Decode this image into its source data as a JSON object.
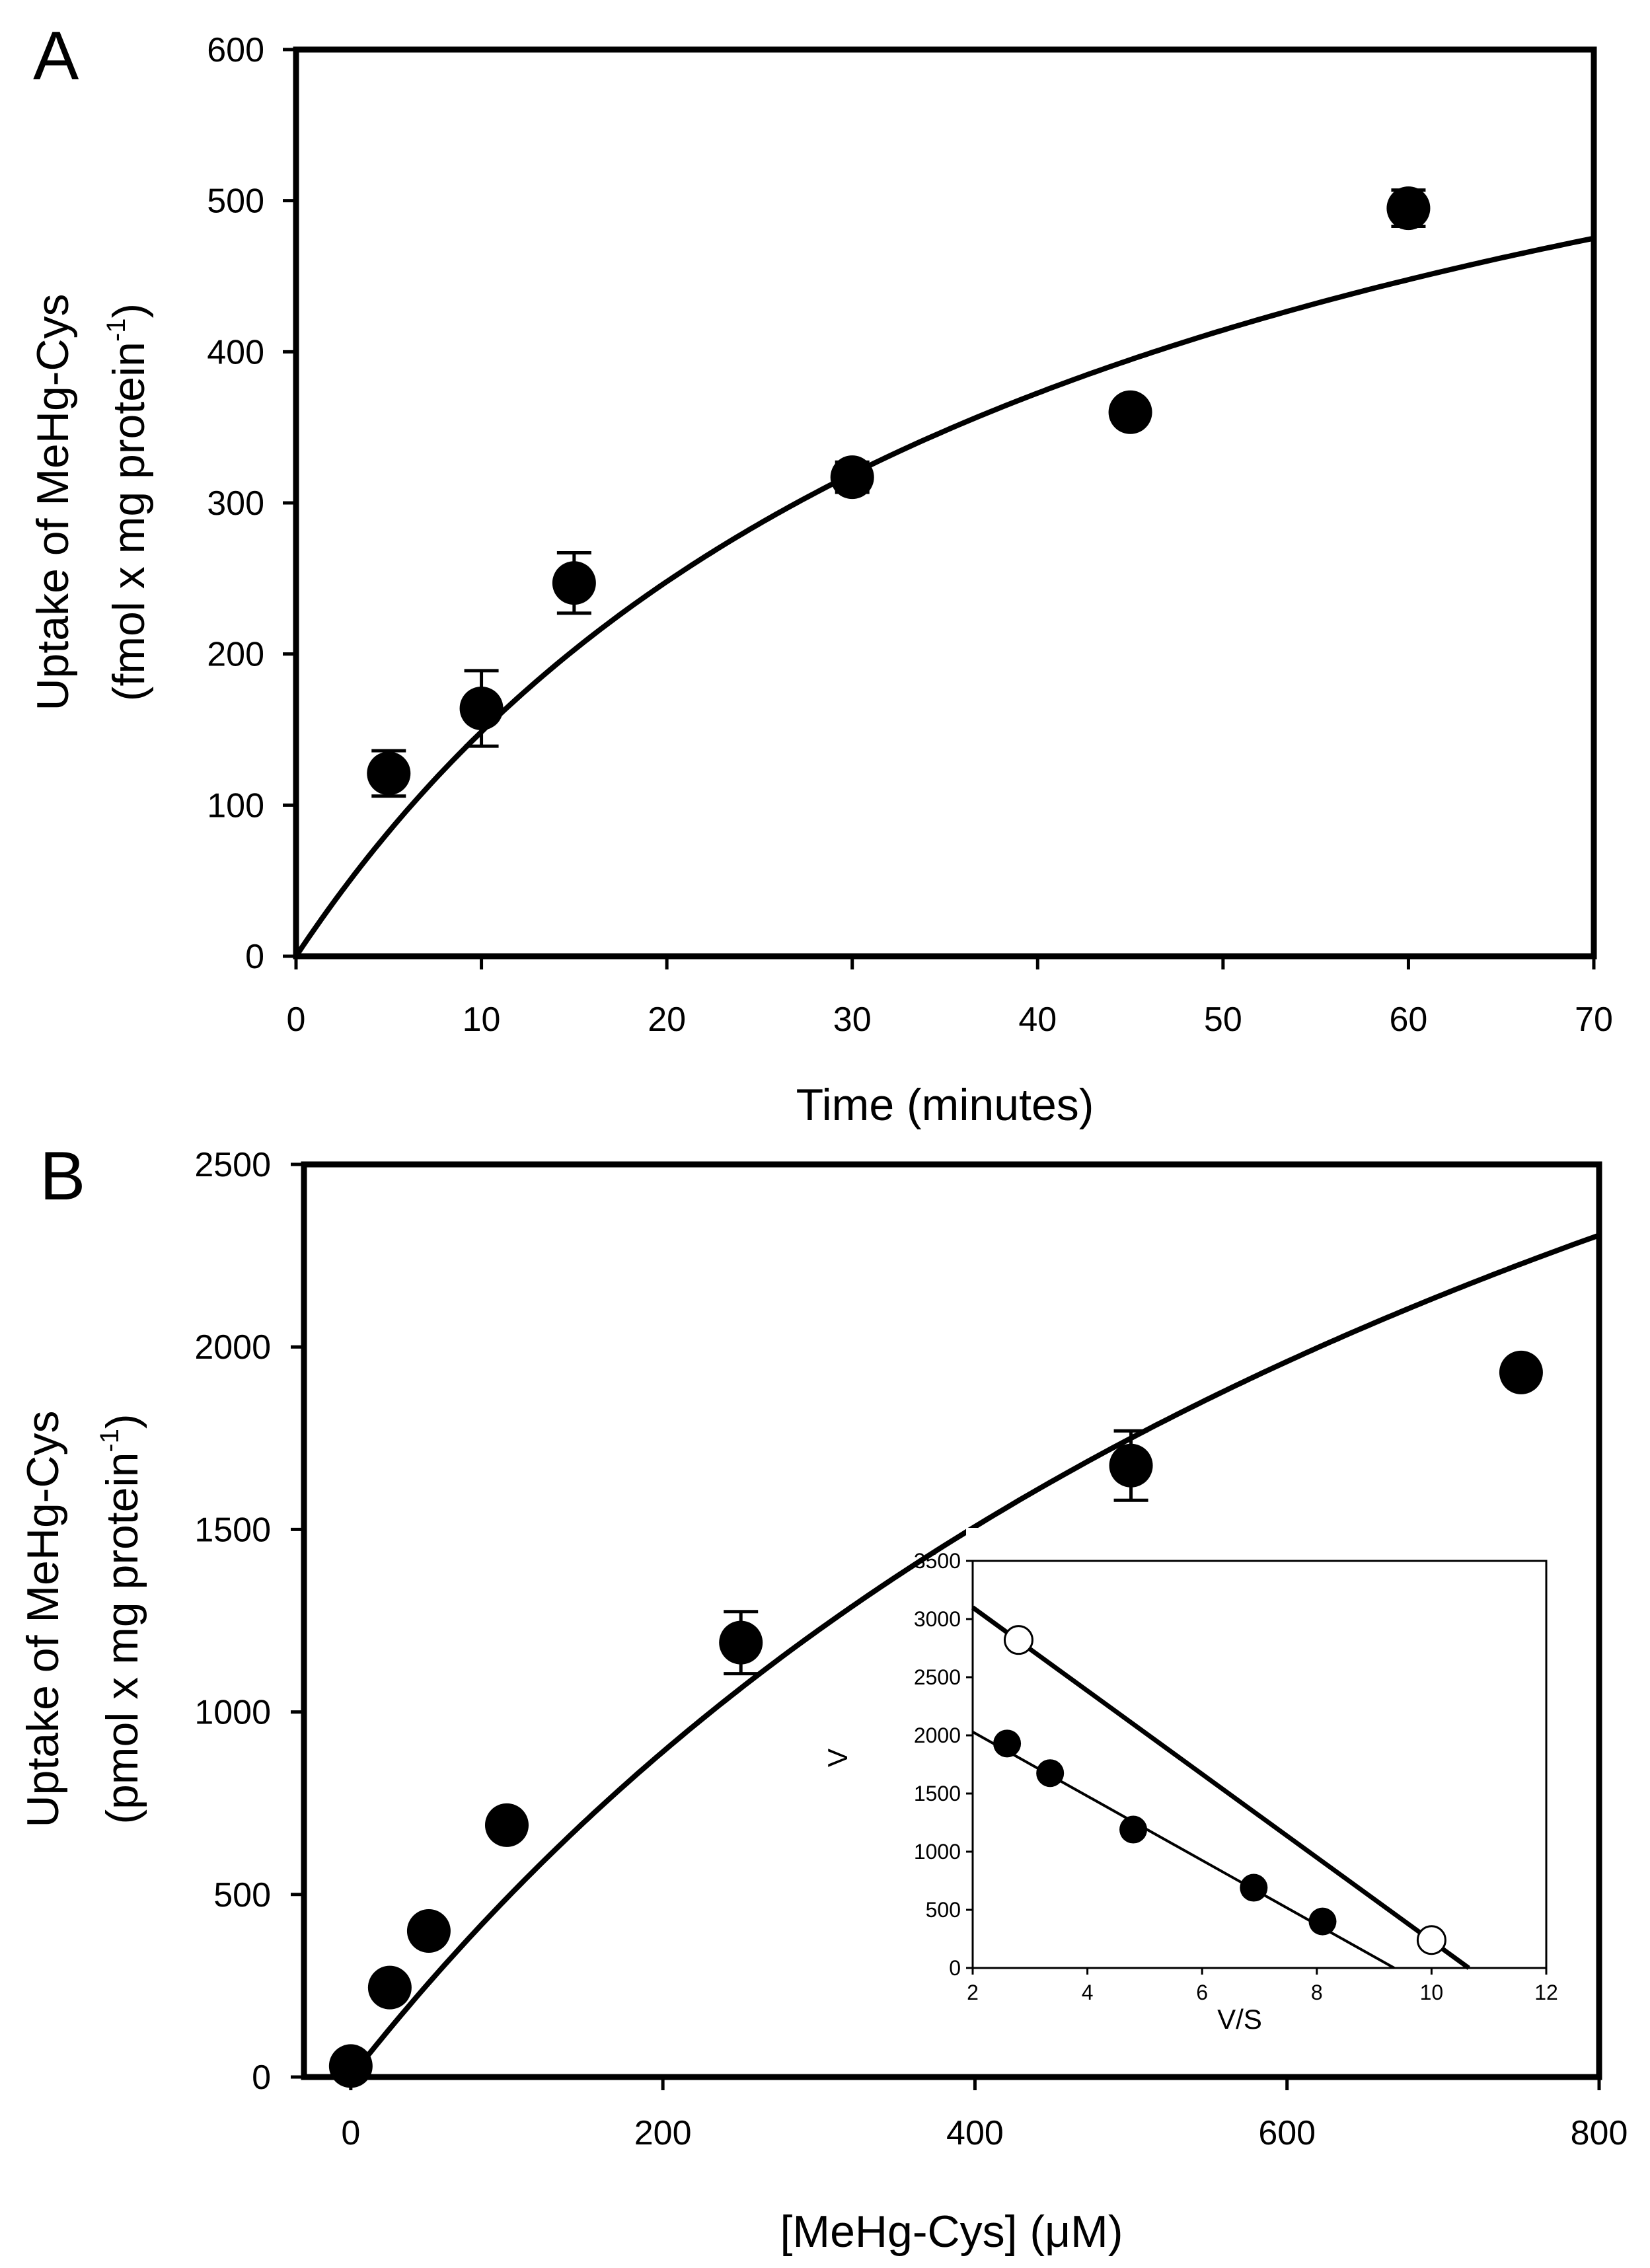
{
  "chart_data": [
    {
      "type": "scatter",
      "panel_label": "A",
      "xlabel": "Time (minutes)",
      "ylabel_line1": "Uptake of MeHg-Cys",
      "ylabel_line2": "(fmol x mg protein",
      "ylabel_sup": "-1",
      "ylabel_close": ")",
      "xlim": [
        0,
        70
      ],
      "ylim": [
        0,
        600
      ],
      "xticks": [
        "0",
        "10",
        "20",
        "30",
        "40",
        "50",
        "60",
        "70"
      ],
      "yticks": [
        "0",
        "100",
        "200",
        "300",
        "400",
        "500",
        "600"
      ],
      "series": [
        {
          "name": "MeHg-Cys uptake",
          "marker": "filled-circle",
          "x": [
            5,
            10,
            15,
            30,
            45,
            60
          ],
          "y": [
            121,
            164,
            247,
            317,
            360,
            495
          ],
          "err": [
            15,
            25,
            20,
            10,
            0,
            12
          ]
        }
      ],
      "fit": {
        "type": "hyperbolic",
        "vmax": 750,
        "k": 40.5,
        "xrange": [
          0,
          70
        ]
      },
      "grid": false
    },
    {
      "type": "scatter",
      "panel_label": "B",
      "xlabel": "[MeHg-Cys] (μM)",
      "ylabel_line1": "Uptake of MeHg-Cys",
      "ylabel_line2": "(pmol x mg protein",
      "ylabel_sup": "-1",
      "ylabel_close": ")",
      "xlim": [
        -30,
        800
      ],
      "ylim": [
        0,
        2500
      ],
      "xticks": [
        "0",
        "200",
        "400",
        "600",
        "800"
      ],
      "yticks": [
        "0",
        "500",
        "1000",
        "1500",
        "2000",
        "2500"
      ],
      "series": [
        {
          "name": "MeHg-Cys uptake",
          "marker": "filled-circle",
          "x": [
            0,
            25,
            50,
            100,
            250,
            500,
            750
          ],
          "y": [
            30,
            245,
            400,
            690,
            1190,
            1675,
            1930
          ],
          "err": [
            0,
            0,
            0,
            0,
            85,
            95,
            0
          ]
        }
      ],
      "fit": {
        "type": "michaelis-menten",
        "vmax": 4900,
        "km": 900,
        "xrange": [
          0,
          800
        ]
      },
      "grid": false,
      "inset": {
        "type": "scatter",
        "xlabel": "V/S",
        "ylabel": "V",
        "xlim": [
          2,
          12
        ],
        "ylim": [
          0,
          3500
        ],
        "xticks": [
          "2",
          "4",
          "6",
          "8",
          "10",
          "12"
        ],
        "yticks": [
          "0",
          "500",
          "1000",
          "1500",
          "2000",
          "2500",
          "3000",
          "3500"
        ],
        "series": [
          {
            "name": "filled",
            "marker": "filled-circle",
            "x": [
              2.6,
              3.35,
              4.8,
              6.9,
              8.1
            ],
            "y": [
              1930,
              1675,
              1190,
              690,
              400
            ],
            "line": {
              "x": [
                2.0,
                9.35
              ],
              "y": [
                2030,
                0
              ]
            }
          },
          {
            "name": "open",
            "marker": "open-circle",
            "x": [
              2.8,
              10.0
            ],
            "y": [
              2820,
              240
            ],
            "line": {
              "x": [
                2.0,
                10.65
              ],
              "y": [
                3100,
                0
              ]
            }
          }
        ]
      }
    }
  ]
}
